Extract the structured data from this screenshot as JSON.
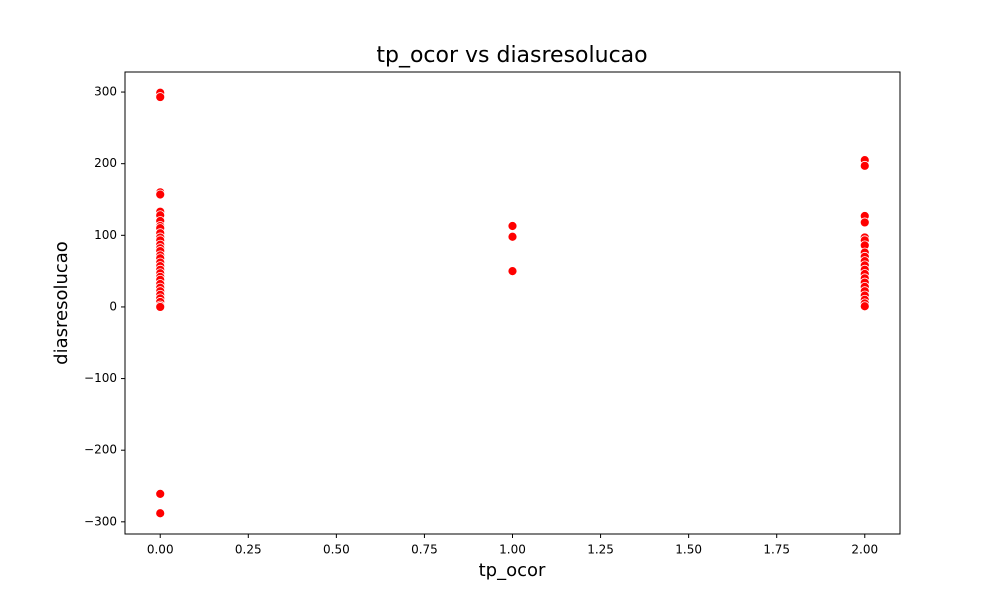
{
  "chart_data": {
    "type": "scatter",
    "title": "tp_ocor vs diasresolucao",
    "x_label": "tp_ocor",
    "y_label": "diasresolucao",
    "xlim": [
      -0.1,
      2.1
    ],
    "xticks": [
      {
        "value": 0,
        "label": "0.00"
      },
      {
        "value": 0.25,
        "label": "0.25"
      },
      {
        "value": 0.5,
        "label": "0.50"
      },
      {
        "value": 0.75,
        "label": "0.75"
      },
      {
        "value": 1,
        "label": "1.00"
      },
      {
        "value": 1.25,
        "label": "1.25"
      },
      {
        "value": 1.5,
        "label": "1.50"
      },
      {
        "value": 1.75,
        "label": "1.75"
      },
      {
        "value": 2,
        "label": "2.00"
      }
    ],
    "ylim": [
      -317,
      328
    ],
    "yticks": [
      {
        "value": -300,
        "label": "−300"
      },
      {
        "value": -200,
        "label": "−200"
      },
      {
        "value": -100,
        "label": "−100"
      },
      0,
      100,
      200,
      300
    ],
    "series": [
      {
        "color": "#ff0000",
        "x": [
          0,
          0,
          0,
          0,
          0,
          0,
          0,
          0,
          0,
          0,
          0,
          0,
          0,
          0,
          0,
          0,
          0,
          0,
          0,
          0,
          0,
          0,
          0,
          0,
          0,
          0,
          0,
          0,
          0,
          0,
          0,
          0,
          0,
          1,
          1,
          1,
          2,
          2,
          2,
          2,
          2,
          2,
          2,
          2,
          2,
          2,
          2,
          2,
          2,
          2,
          2,
          2,
          2,
          2,
          2,
          2,
          2
        ],
        "values": [
          299,
          293,
          160,
          157,
          133,
          128,
          120,
          113,
          110,
          103,
          97,
          93,
          87,
          82,
          78,
          72,
          68,
          62,
          57,
          52,
          47,
          42,
          38,
          32,
          27,
          22,
          17,
          12,
          7,
          2,
          0,
          -261,
          -288,
          113,
          98,
          50,
          205,
          197,
          127,
          118,
          97,
          93,
          86,
          76,
          70,
          64,
          58,
          52,
          46,
          40,
          34,
          28,
          22,
          16,
          10,
          5,
          1
        ]
      }
    ]
  }
}
